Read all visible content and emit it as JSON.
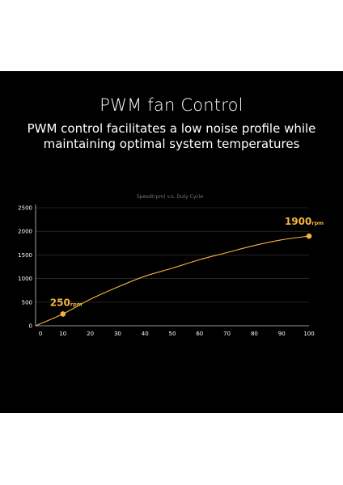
{
  "header": {
    "title": "PWM fan Control",
    "subtitle": "PWM control facilitates a low noise profile while maintaining optimal system temperatures"
  },
  "colors": {
    "background": "#000000",
    "curve": "#f4b43c",
    "grid": "#3a3a3a",
    "text": "#ffffff"
  },
  "chart_data": {
    "type": "line",
    "title": "Speed(rpm) v.s. Duty Cycle",
    "xlabel": "",
    "ylabel": "",
    "xlim": [
      0,
      100
    ],
    "ylim": [
      0,
      2500
    ],
    "x_ticks": [
      0,
      10,
      20,
      30,
      40,
      50,
      60,
      70,
      80,
      90,
      100
    ],
    "y_ticks": [
      0,
      500,
      1000,
      1500,
      2000,
      2500
    ],
    "grid": true,
    "series": [
      {
        "x": [
          0,
          10,
          20,
          30,
          40,
          50,
          60,
          70,
          80,
          90,
          100
        ],
        "y": [
          0,
          250,
          560,
          820,
          1050,
          1220,
          1400,
          1550,
          1700,
          1820,
          1900
        ]
      }
    ],
    "annotations": [
      {
        "x": 10,
        "y": 250,
        "value": "250",
        "unit": "rpm"
      },
      {
        "x": 100,
        "y": 1900,
        "value": "1900",
        "unit": "rpm"
      }
    ]
  }
}
